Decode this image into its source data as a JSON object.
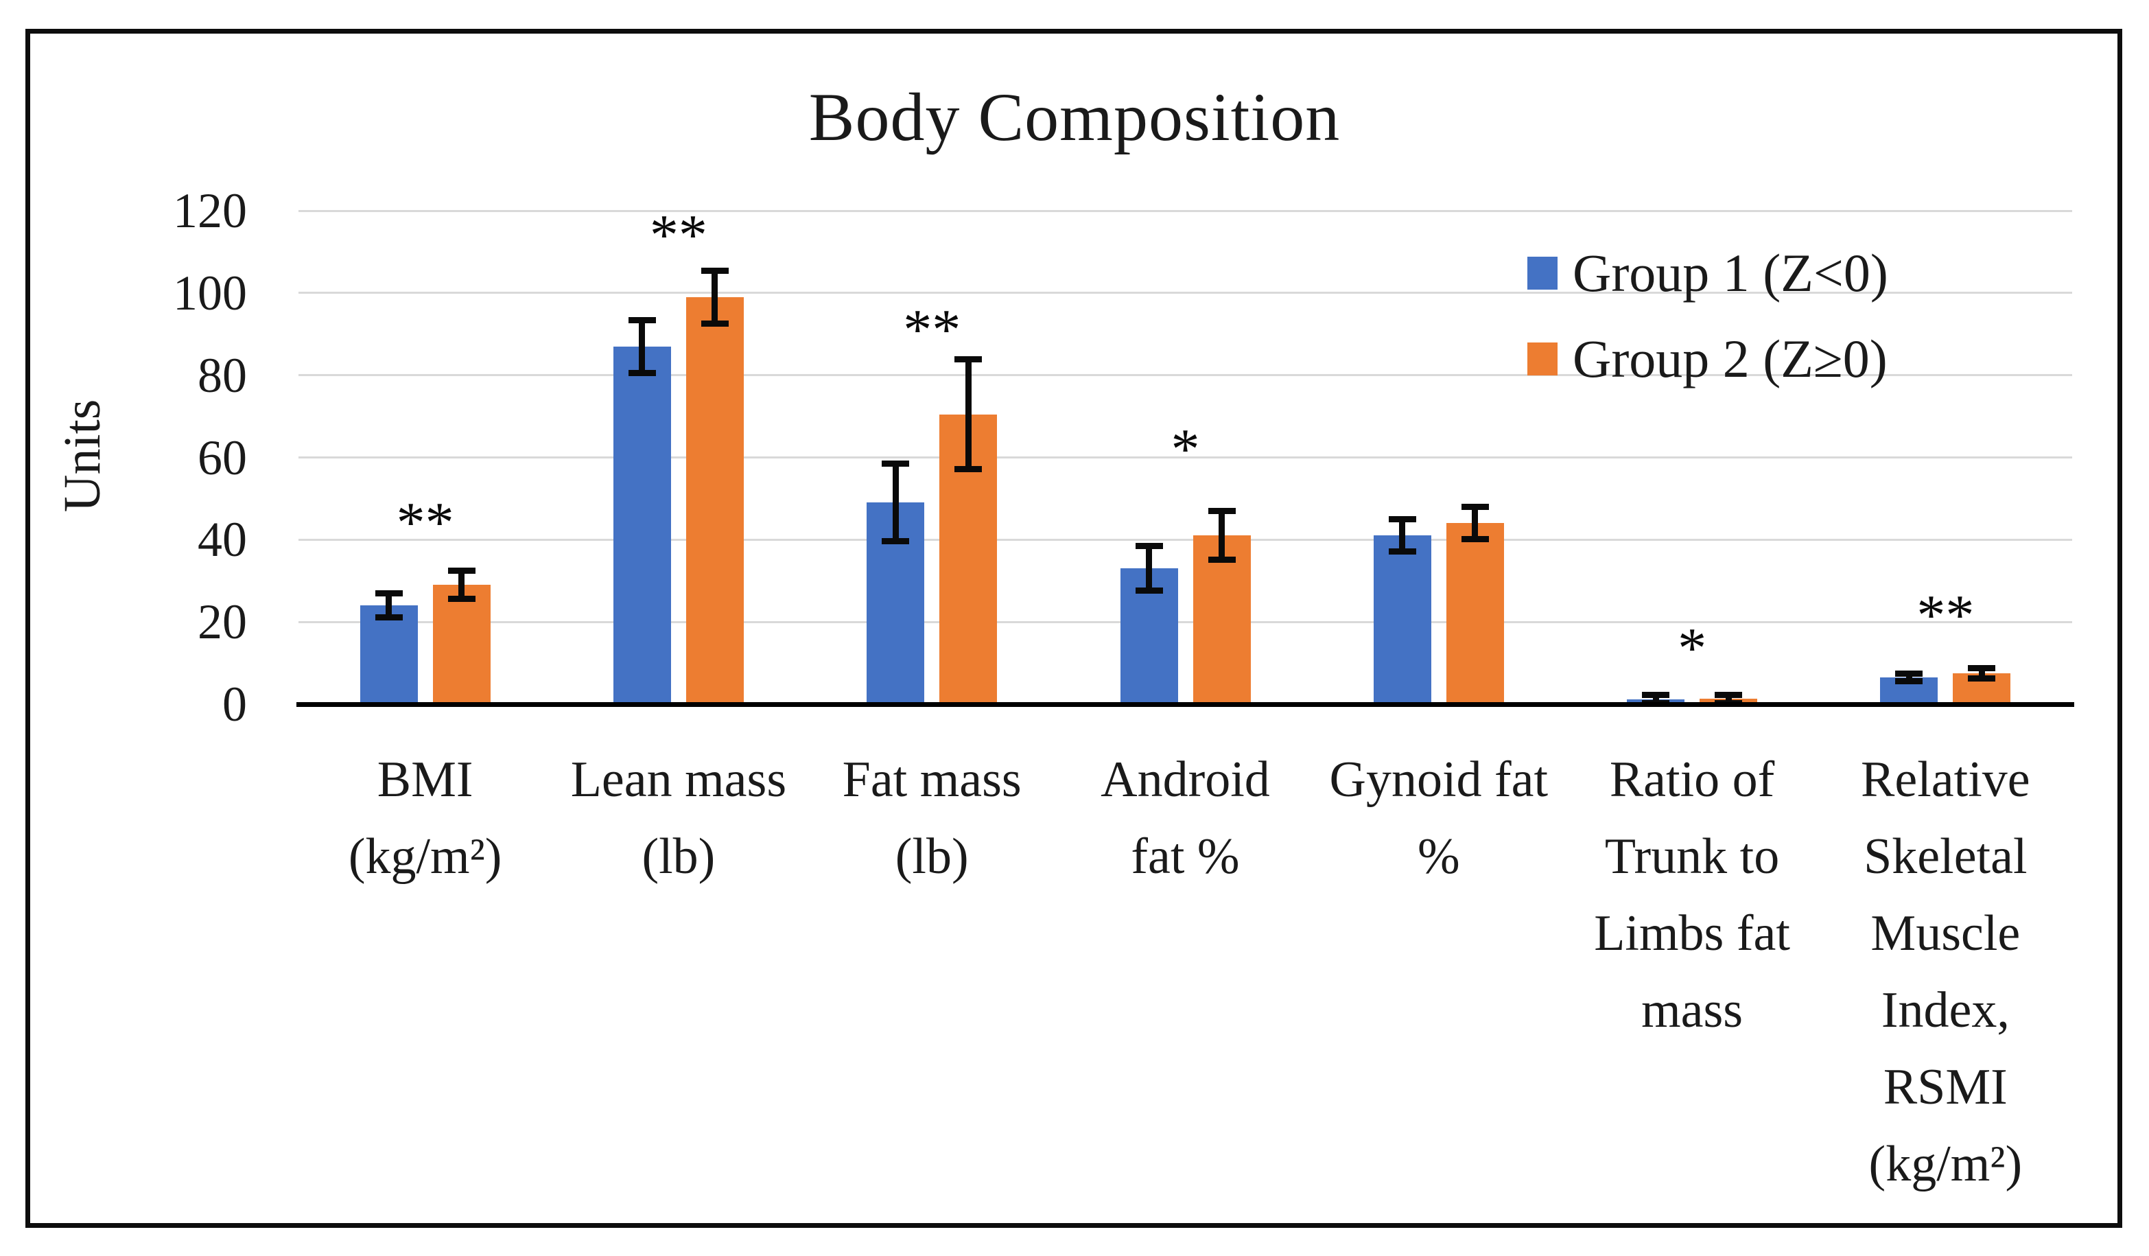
{
  "figure": {
    "title": "Body Composition",
    "y_axis_title": "Units"
  },
  "chart_data": {
    "type": "bar",
    "title": "Body Composition",
    "xlabel": "",
    "ylabel": "Units",
    "ylim": [
      0,
      120
    ],
    "ytick_step": 20,
    "yticks": [
      0,
      20,
      40,
      60,
      80,
      100,
      120
    ],
    "grid": true,
    "legend_position": "upper-right-inside",
    "categories": [
      "BMI\n(kg/m²)",
      "Lean mass\n(lb)",
      "Fat mass\n(lb)",
      "Android\nfat %",
      "Gynoid fat\n%",
      "Ratio of\nTrunk to\nLimbs fat\nmass",
      "Relative\nSkeletal\nMuscle\nIndex,\nRSMI\n(kg/m²)"
    ],
    "series": [
      {
        "name": "Group 1 (Z<0)",
        "color": "#4472C4",
        "values": [
          24,
          87,
          49,
          33,
          41,
          1.2,
          6.5
        ],
        "errors": [
          2.5,
          6,
          9,
          5,
          3.5,
          0.6,
          0.5
        ]
      },
      {
        "name": "Group 2 (Z≥0)",
        "color": "#ED7D31",
        "values": [
          29,
          99,
          70.5,
          41,
          44,
          1.3,
          7.5
        ],
        "errors": [
          3,
          6,
          13,
          5.5,
          3.5,
          0.6,
          0.8
        ]
      }
    ],
    "significance_markers": [
      {
        "category_index": 0,
        "marker": "**",
        "y_units": 46
      },
      {
        "category_index": 1,
        "marker": "**",
        "y_units": 116
      },
      {
        "category_index": 2,
        "marker": "**",
        "y_units": 93
      },
      {
        "category_index": 3,
        "marker": "*",
        "y_units": 64
      },
      {
        "category_index": 5,
        "marker": "*",
        "y_units": 15.5
      },
      {
        "category_index": 6,
        "marker": "**",
        "y_units": 23.5
      }
    ]
  }
}
